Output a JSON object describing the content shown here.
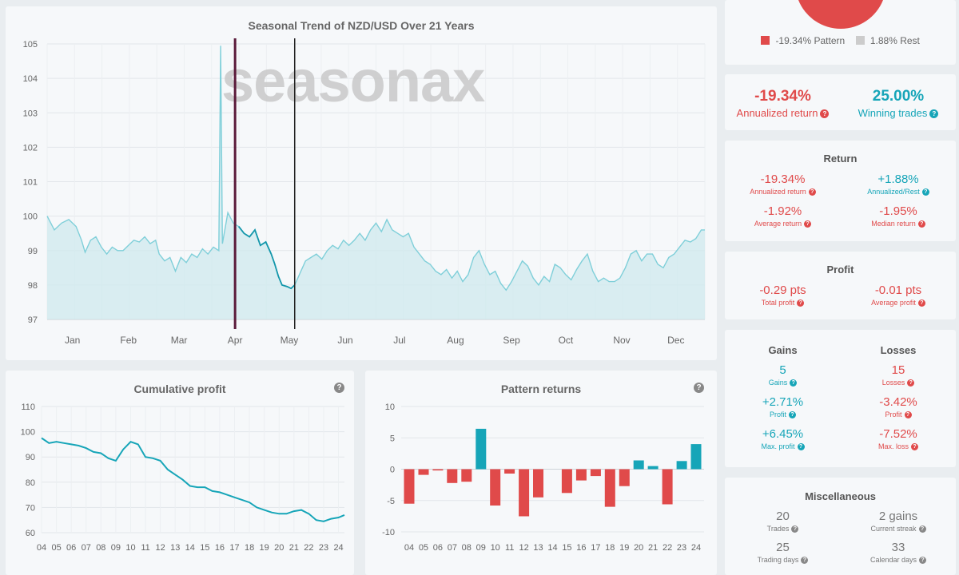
{
  "seasonal": {
    "title": "Seasonal Trend of NZD/USD Over 21 Years",
    "watermark": "seasonax",
    "y_ticks": [
      "97",
      "98",
      "99",
      "100",
      "101",
      "102",
      "103",
      "104",
      "105"
    ],
    "months": [
      "Jan",
      "Feb",
      "Mar",
      "Apr",
      "May",
      "Jun",
      "Jul",
      "Aug",
      "Sep",
      "Oct",
      "Nov",
      "Dec"
    ]
  },
  "cumulative": {
    "title": "Cumulative profit"
  },
  "pattern": {
    "title": "Pattern returns"
  },
  "legend": {
    "pattern": "-19.34% Pattern",
    "rest": "1.88% Rest"
  },
  "summary": {
    "annualized_value": "-19.34%",
    "annualized_label": "Annualized return",
    "winning_value": "25.00%",
    "winning_label": "Winning trades"
  },
  "return": {
    "title": "Return",
    "items": [
      {
        "value": "-19.34%",
        "label": "Annualized return",
        "color": "red"
      },
      {
        "value": "+1.88%",
        "label": "Annualized/Rest",
        "color": "teal"
      },
      {
        "value": "-1.92%",
        "label": "Average return",
        "color": "red"
      },
      {
        "value": "-1.95%",
        "label": "Median return",
        "color": "red"
      }
    ]
  },
  "profit": {
    "title": "Profit",
    "items": [
      {
        "value": "-0.29 pts",
        "label": "Total profit",
        "color": "red"
      },
      {
        "value": "-0.01 pts",
        "label": "Average profit",
        "color": "red"
      }
    ]
  },
  "gains_losses": {
    "gains_title": "Gains",
    "losses_title": "Losses",
    "gains": [
      {
        "value": "5",
        "label": "Gains"
      },
      {
        "value": "+2.71%",
        "label": "Profit"
      },
      {
        "value": "+6.45%",
        "label": "Max. profit"
      }
    ],
    "losses": [
      {
        "value": "15",
        "label": "Losses"
      },
      {
        "value": "-3.42%",
        "label": "Profit"
      },
      {
        "value": "-7.52%",
        "label": "Max. loss"
      }
    ]
  },
  "misc": {
    "title": "Miscellaneous",
    "items": [
      {
        "value": "20",
        "label": "Trades"
      },
      {
        "value": "2 gains",
        "label": "Current streak"
      },
      {
        "value": "25",
        "label": "Trading days"
      },
      {
        "value": "33",
        "label": "Calendar days"
      }
    ]
  },
  "colors": {
    "red": "#e04a4a",
    "teal": "#16a5b8",
    "line": "#7fcfd9",
    "pattern_start": "#5a1a3a",
    "pattern_end": "#222222"
  },
  "chart_data": [
    {
      "type": "line",
      "title": "Seasonal Trend of NZD/USD Over 21 Years",
      "xlabel": "",
      "ylabel": "",
      "ylim": [
        97,
        105
      ],
      "x_range": [
        1,
        365
      ],
      "x_unit": "day of year",
      "month_ticks": [
        {
          "label": "Jan",
          "x": 15
        },
        {
          "label": "Feb",
          "x": 46
        },
        {
          "label": "Mar",
          "x": 74
        },
        {
          "label": "Apr",
          "x": 105
        },
        {
          "label": "May",
          "x": 135
        },
        {
          "label": "Jun",
          "x": 166
        },
        {
          "label": "Jul",
          "x": 196
        },
        {
          "label": "Aug",
          "x": 227
        },
        {
          "label": "Sep",
          "x": 258
        },
        {
          "label": "Oct",
          "x": 288
        },
        {
          "label": "Nov",
          "x": 319
        },
        {
          "label": "Dec",
          "x": 349
        }
      ],
      "pattern_window": [
        105,
        138
      ],
      "series": [
        {
          "points": [
            [
              1,
              100.0
            ],
            [
              5,
              99.6
            ],
            [
              9,
              99.8
            ],
            [
              13,
              99.9
            ],
            [
              17,
              99.7
            ],
            [
              20,
              99.3
            ],
            [
              22,
              98.95
            ],
            [
              25,
              99.3
            ],
            [
              28,
              99.4
            ],
            [
              31,
              99.1
            ],
            [
              34,
              98.9
            ],
            [
              37,
              99.1
            ],
            [
              40,
              99.0
            ],
            [
              43,
              99.0
            ],
            [
              46,
              99.15
            ],
            [
              49,
              99.3
            ],
            [
              52,
              99.25
            ],
            [
              55,
              99.4
            ],
            [
              58,
              99.2
            ],
            [
              61,
              99.3
            ],
            [
              63,
              98.9
            ],
            [
              66,
              98.7
            ],
            [
              69,
              98.8
            ],
            [
              72,
              98.4
            ],
            [
              75,
              98.8
            ],
            [
              78,
              98.65
            ],
            [
              81,
              98.9
            ],
            [
              84,
              98.8
            ],
            [
              87,
              99.05
            ],
            [
              90,
              98.9
            ],
            [
              93,
              99.1
            ],
            [
              96,
              99.0
            ],
            [
              97,
              104.95
            ],
            [
              98,
              99.2
            ],
            [
              101,
              100.1
            ],
            [
              104,
              99.8
            ],
            [
              107,
              99.7
            ],
            [
              110,
              99.5
            ],
            [
              113,
              99.4
            ],
            [
              116,
              99.6
            ],
            [
              119,
              99.15
            ],
            [
              122,
              99.25
            ],
            [
              125,
              98.9
            ],
            [
              127,
              98.6
            ],
            [
              129,
              98.25
            ],
            [
              131,
              98.0
            ],
            [
              134,
              97.95
            ],
            [
              136,
              97.9
            ],
            [
              138,
              98.0
            ],
            [
              141,
              98.35
            ],
            [
              144,
              98.7
            ],
            [
              147,
              98.8
            ],
            [
              150,
              98.9
            ],
            [
              153,
              98.75
            ],
            [
              156,
              99.0
            ],
            [
              159,
              99.15
            ],
            [
              162,
              99.05
            ],
            [
              165,
              99.3
            ],
            [
              168,
              99.15
            ],
            [
              171,
              99.3
            ],
            [
              174,
              99.5
            ],
            [
              177,
              99.3
            ],
            [
              180,
              99.6
            ],
            [
              183,
              99.8
            ],
            [
              186,
              99.55
            ],
            [
              189,
              99.9
            ],
            [
              192,
              99.6
            ],
            [
              195,
              99.5
            ],
            [
              198,
              99.4
            ],
            [
              201,
              99.5
            ],
            [
              204,
              99.1
            ],
            [
              207,
              98.9
            ],
            [
              210,
              98.7
            ],
            [
              213,
              98.6
            ],
            [
              216,
              98.4
            ],
            [
              219,
              98.3
            ],
            [
              222,
              98.45
            ],
            [
              225,
              98.2
            ],
            [
              228,
              98.4
            ],
            [
              231,
              98.1
            ],
            [
              234,
              98.3
            ],
            [
              237,
              98.8
            ],
            [
              240,
              99.0
            ],
            [
              243,
              98.6
            ],
            [
              246,
              98.3
            ],
            [
              249,
              98.4
            ],
            [
              252,
              98.05
            ],
            [
              255,
              97.85
            ],
            [
              258,
              98.1
            ],
            [
              261,
              98.4
            ],
            [
              264,
              98.7
            ],
            [
              267,
              98.55
            ],
            [
              270,
              98.2
            ],
            [
              273,
              98.0
            ],
            [
              276,
              98.25
            ],
            [
              279,
              98.1
            ],
            [
              282,
              98.6
            ],
            [
              285,
              98.5
            ],
            [
              288,
              98.3
            ],
            [
              291,
              98.15
            ],
            [
              294,
              98.45
            ],
            [
              297,
              98.7
            ],
            [
              300,
              98.9
            ],
            [
              303,
              98.4
            ],
            [
              306,
              98.1
            ],
            [
              309,
              98.2
            ],
            [
              312,
              98.1
            ],
            [
              315,
              98.1
            ],
            [
              318,
              98.2
            ],
            [
              321,
              98.5
            ],
            [
              324,
              98.9
            ],
            [
              327,
              99.0
            ],
            [
              330,
              98.7
            ],
            [
              333,
              98.9
            ],
            [
              336,
              98.9
            ],
            [
              339,
              98.6
            ],
            [
              342,
              98.5
            ],
            [
              345,
              98.8
            ],
            [
              348,
              98.9
            ],
            [
              351,
              99.1
            ],
            [
              354,
              99.3
            ],
            [
              357,
              99.25
            ],
            [
              360,
              99.35
            ],
            [
              363,
              99.6
            ],
            [
              365,
              99.6
            ]
          ]
        }
      ]
    },
    {
      "type": "line",
      "title": "Cumulative profit",
      "xlabel": "",
      "ylabel": "",
      "ylim": [
        60,
        110
      ],
      "y_ticks": [
        60,
        70,
        80,
        90,
        100,
        110
      ],
      "categories": [
        "04",
        "05",
        "06",
        "07",
        "08",
        "09",
        "10",
        "11",
        "12",
        "13",
        "14",
        "15",
        "16",
        "17",
        "18",
        "19",
        "20",
        "21",
        "22",
        "23",
        "24"
      ],
      "x_range": [
        2004,
        2024.4
      ],
      "series": [
        {
          "points": [
            [
              2004.0,
              97.5
            ],
            [
              2004.5,
              95.5
            ],
            [
              2005.0,
              96.0
            ],
            [
              2005.5,
              95.5
            ],
            [
              2006.0,
              95.0
            ],
            [
              2006.5,
              94.5
            ],
            [
              2007.0,
              93.5
            ],
            [
              2007.5,
              92.0
            ],
            [
              2008.0,
              91.5
            ],
            [
              2008.5,
              89.5
            ],
            [
              2009.0,
              88.5
            ],
            [
              2009.5,
              93.0
            ],
            [
              2010.0,
              96.0
            ],
            [
              2010.5,
              95.0
            ],
            [
              2011.0,
              90.0
            ],
            [
              2011.5,
              89.5
            ],
            [
              2012.0,
              88.5
            ],
            [
              2012.5,
              85.0
            ],
            [
              2013.0,
              83.0
            ],
            [
              2013.5,
              81.0
            ],
            [
              2014.0,
              78.5
            ],
            [
              2014.5,
              78.0
            ],
            [
              2015.0,
              78.0
            ],
            [
              2015.5,
              76.5
            ],
            [
              2016.0,
              76.0
            ],
            [
              2016.5,
              75.0
            ],
            [
              2017.0,
              74.0
            ],
            [
              2017.5,
              73.0
            ],
            [
              2018.0,
              72.0
            ],
            [
              2018.5,
              70.0
            ],
            [
              2019.0,
              69.0
            ],
            [
              2019.5,
              68.0
            ],
            [
              2020.0,
              67.5
            ],
            [
              2020.5,
              67.5
            ],
            [
              2021.0,
              68.5
            ],
            [
              2021.5,
              69.0
            ],
            [
              2022.0,
              67.5
            ],
            [
              2022.5,
              65.0
            ],
            [
              2023.0,
              64.5
            ],
            [
              2023.5,
              65.5
            ],
            [
              2024.0,
              66.0
            ],
            [
              2024.4,
              67.0
            ]
          ]
        }
      ]
    },
    {
      "type": "bar",
      "title": "Pattern returns",
      "xlabel": "",
      "ylabel": "",
      "ylim": [
        -10,
        10
      ],
      "y_ticks": [
        -10,
        -5,
        0,
        5,
        10
      ],
      "categories": [
        "04",
        "05",
        "06",
        "07",
        "08",
        "09",
        "10",
        "11",
        "12",
        "13",
        "14",
        "15",
        "16",
        "17",
        "18",
        "19",
        "20",
        "21",
        "22",
        "23",
        "24"
      ],
      "values": [
        -5.5,
        -0.9,
        -0.2,
        -2.2,
        -2.0,
        6.45,
        -5.8,
        -0.7,
        -7.52,
        -4.5,
        null,
        -3.8,
        -1.8,
        -1.1,
        -6.0,
        -2.7,
        1.4,
        0.5,
        -5.6,
        1.3,
        4.0
      ]
    },
    {
      "type": "pie",
      "slices": [
        {
          "label": "-19.34% Pattern",
          "value": 19.34,
          "color": "#e04a4a"
        },
        {
          "label": "1.88% Rest",
          "value": 1.88,
          "color": "#cccccc"
        }
      ]
    }
  ]
}
